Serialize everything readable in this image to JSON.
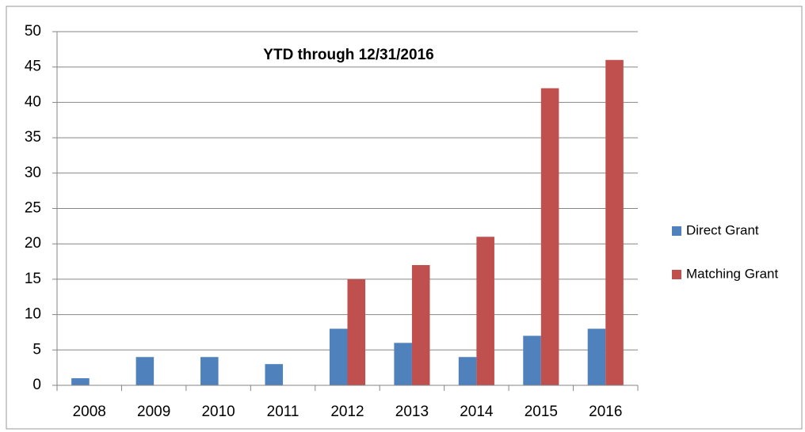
{
  "chart_data": {
    "type": "bar",
    "title": "YTD through 12/31/2016",
    "categories": [
      "2008",
      "2009",
      "2010",
      "2011",
      "2012",
      "2013",
      "2014",
      "2015",
      "2016"
    ],
    "series": [
      {
        "name": "Direct Grant",
        "color": "#4f81bd",
        "values": [
          1,
          4,
          4,
          3,
          8,
          6,
          4,
          7,
          8
        ]
      },
      {
        "name": "Matching Grant",
        "color": "#c0504d",
        "values": [
          0,
          0,
          0,
          0,
          15,
          17,
          21,
          42,
          46
        ]
      }
    ],
    "ylim": [
      0,
      50
    ],
    "yticks": [
      0,
      5,
      10,
      15,
      20,
      25,
      30,
      35,
      40,
      45,
      50
    ],
    "grid": true,
    "legend": "right"
  }
}
